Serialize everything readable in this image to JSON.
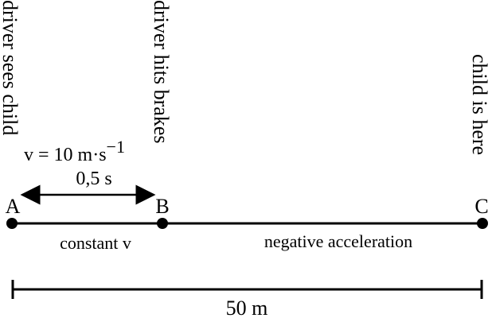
{
  "annotations": {
    "driver_sees_child": "driver sees child",
    "driver_hits_brakes": "driver hits brakes",
    "child_is_here": "child is here"
  },
  "points": {
    "a": "A",
    "b": "B",
    "c": "C"
  },
  "segment_ab": {
    "velocity_text": "v = 10 m·s",
    "velocity_exponent": "−1",
    "time": "0,5 s",
    "description": "constant v"
  },
  "segment_bc": {
    "description": "negative acceleration"
  },
  "distance": {
    "label": "50 m"
  },
  "colors": {
    "ink": "#000000",
    "background": "#ffffff"
  }
}
